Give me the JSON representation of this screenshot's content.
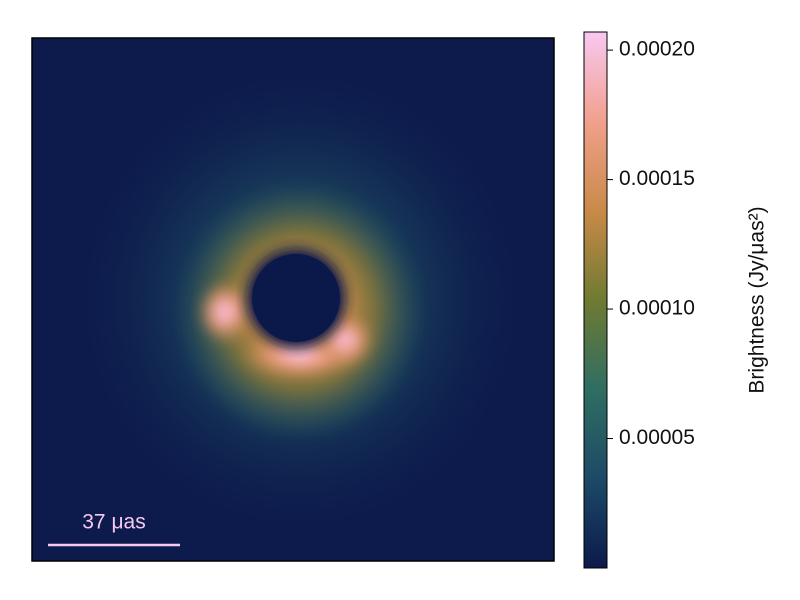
{
  "chart_data": {
    "type": "heatmap",
    "colorbar": {
      "label": "Brightness (Jy/μas²)",
      "zlim": [
        0,
        0.000207
      ],
      "zticks": [
        {
          "value": 5e-05,
          "label": "0.00005"
        },
        {
          "value": 0.0001,
          "label": "0.00010"
        },
        {
          "value": 0.00015,
          "label": "0.00015"
        },
        {
          "value": 0.0002,
          "label": "0.00020"
        }
      ],
      "colormap": [
        "#0c1a4c",
        "#1d4a66",
        "#2f6e62",
        "#6f7a32",
        "#c98a48",
        "#f1a08c",
        "#f8c8f2"
      ]
    },
    "scale_bar": {
      "label": "37 μas",
      "color": "#f8c8f2"
    }
  }
}
